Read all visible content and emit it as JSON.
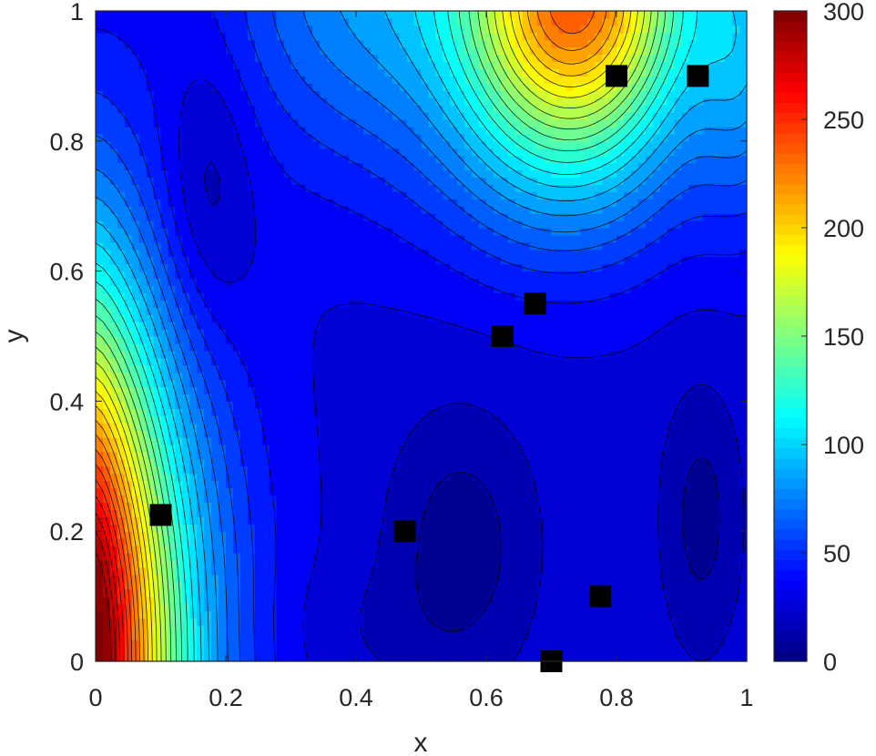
{
  "chart_data": {
    "type": "contour",
    "title": "",
    "xlabel": "x",
    "ylabel": "y",
    "xlim": [
      0,
      1
    ],
    "ylim": [
      0,
      1
    ],
    "xticks": [
      "0",
      "0.2",
      "0.4",
      "0.6",
      "0.8",
      "1"
    ],
    "yticks": [
      "0",
      "0.2",
      "0.4",
      "0.6",
      "0.8",
      "1"
    ],
    "colorbar": {
      "colormap": "jet",
      "range": [
        0,
        300
      ],
      "ticks": [
        "0",
        "50",
        "100",
        "150",
        "200",
        "250",
        "300"
      ]
    },
    "contour_level_step": 10,
    "marker_color": "#000000",
    "markers": [
      {
        "x": 0.1,
        "y": 0.225
      },
      {
        "x": 0.475,
        "y": 0.2
      },
      {
        "x": 0.625,
        "y": 0.5
      },
      {
        "x": 0.675,
        "y": 0.55
      },
      {
        "x": 0.8,
        "y": 0.9
      },
      {
        "x": 0.925,
        "y": 0.9
      },
      {
        "x": 0.775,
        "y": 0.1
      },
      {
        "x": 0.7,
        "y": 0.0
      }
    ]
  }
}
